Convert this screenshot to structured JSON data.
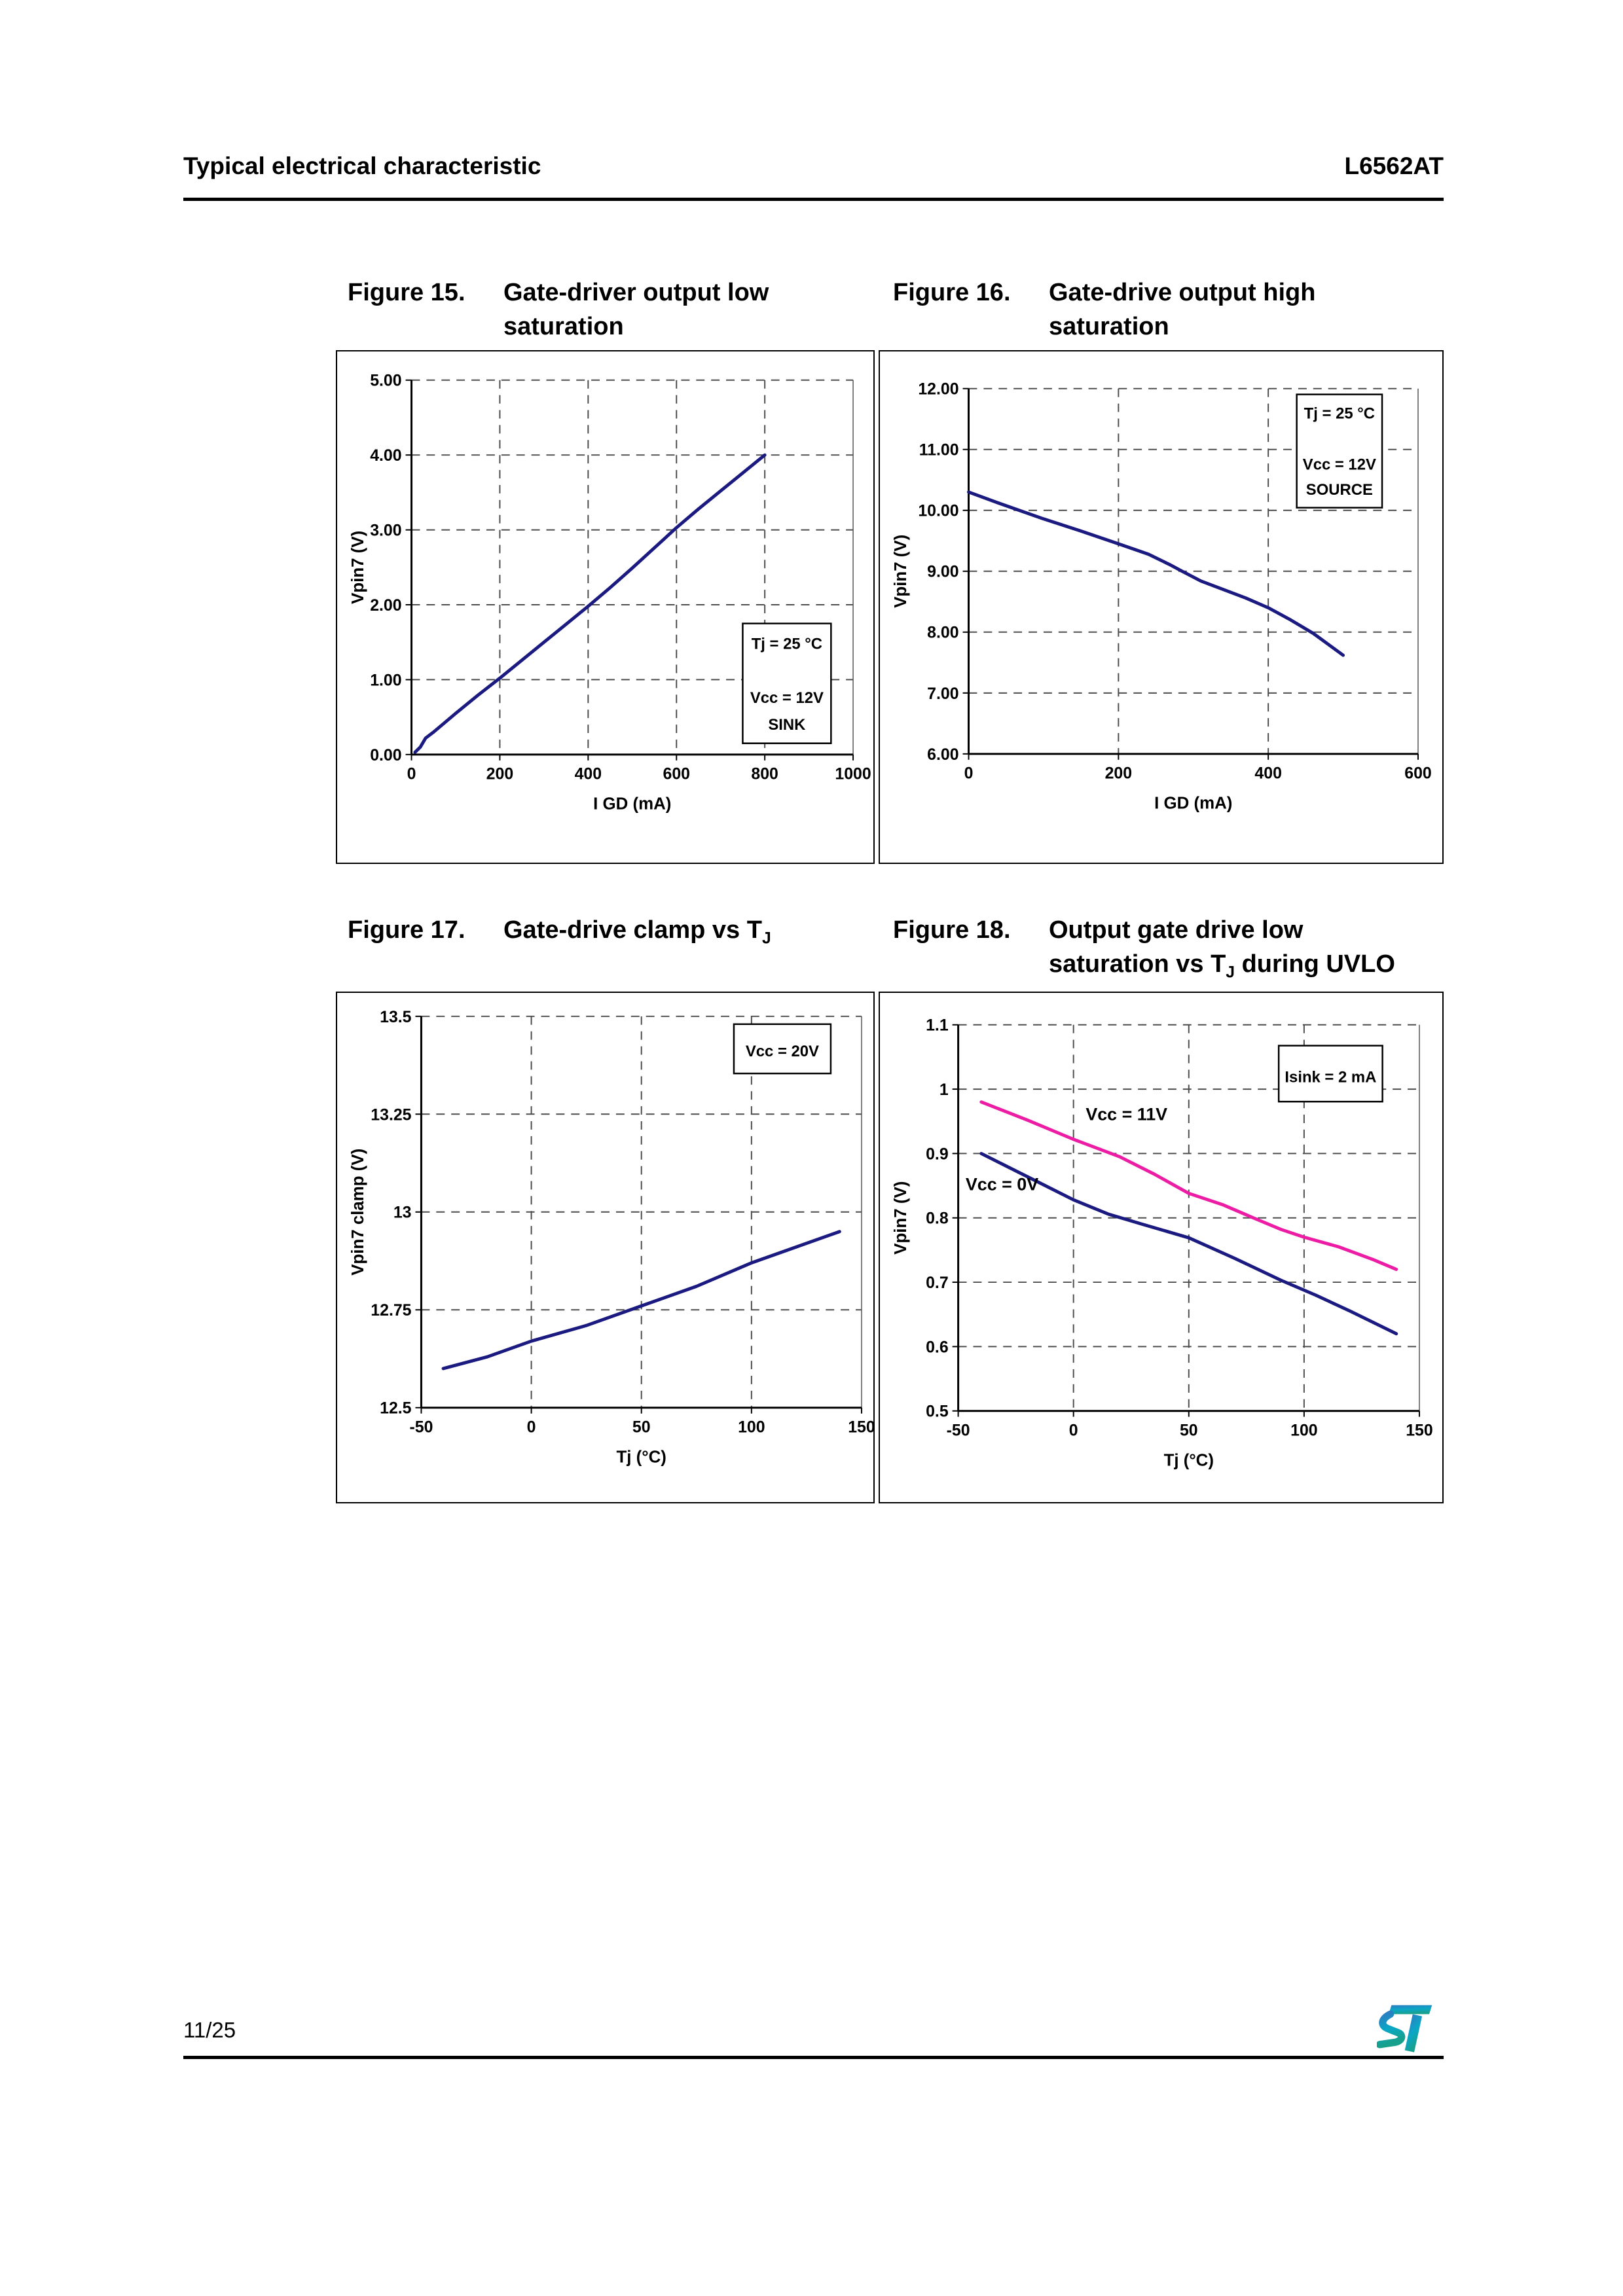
{
  "page": {
    "header_left": "Typical electrical characteristic",
    "header_right": "L6562AT",
    "footer_page": "11/25",
    "logo_name": "st-logo"
  },
  "colors": {
    "navy": "#1a1a80",
    "magenta": "#ec1ca4",
    "grid": "#4d4d4d",
    "axis": "#000000",
    "logo_blue": "#2e7bc1",
    "logo_teal": "#17a08c"
  },
  "figures": [
    {
      "label": "Figure 15.",
      "l1_pre": "Gate-driver output low",
      "l1_sub": "",
      "l1_post": "",
      "l2_pre": "saturation",
      "l2_sub": "",
      "l2_post": ""
    },
    {
      "label": "Figure 16.",
      "l1_pre": "Gate-drive output high",
      "l1_sub": "",
      "l1_post": "",
      "l2_pre": "saturation",
      "l2_sub": "",
      "l2_post": ""
    },
    {
      "label": "Figure 17.",
      "l1_pre": "Gate-drive clamp vs T",
      "l1_sub": "J",
      "l1_post": "",
      "l2_pre": "",
      "l2_sub": "",
      "l2_post": ""
    },
    {
      "label": "Figure 18.",
      "l1_pre": "Output gate drive low",
      "l1_sub": "",
      "l1_post": "",
      "l2_pre": "saturation vs T",
      "l2_sub": "J",
      "l2_post": " during UVLO"
    }
  ],
  "chart_data": [
    {
      "id": "fig15",
      "type": "line",
      "title": "Gate-driver output low saturation",
      "xlabel": "I GD (mA)",
      "ylabel": "Vpin7 (V)",
      "xlim": [
        0,
        1000
      ],
      "ylim": [
        0,
        5
      ],
      "xticks": [
        0,
        200,
        400,
        600,
        800,
        1000
      ],
      "xtick_labels": [
        "0",
        "200",
        "400",
        "600",
        "800",
        "1000"
      ],
      "yticks": [
        0,
        1,
        2,
        3,
        4,
        5
      ],
      "ytick_labels": [
        "0.00",
        "1.00",
        "2.00",
        "3.00",
        "4.00",
        "5.00"
      ],
      "grid": "dashed",
      "annotation": {
        "lines": [
          "Tj = 25 °C",
          "",
          "Vcc = 12V",
          "SINK"
        ],
        "fx": 0.75,
        "fy": 0.65,
        "fw": 0.2,
        "fh": 0.32
      },
      "series": [
        {
          "name": "Vpin7 low saturation, sink",
          "color": "#1a1a80",
          "points": [
            [
              8,
              0.03
            ],
            [
              20,
              0.1
            ],
            [
              32,
              0.22
            ],
            [
              50,
              0.3
            ],
            [
              100,
              0.55
            ],
            [
              150,
              0.79
            ],
            [
              200,
              1.02
            ],
            [
              250,
              1.26
            ],
            [
              300,
              1.5
            ],
            [
              350,
              1.74
            ],
            [
              400,
              1.98
            ],
            [
              450,
              2.23
            ],
            [
              500,
              2.49
            ],
            [
              550,
              2.76
            ],
            [
              600,
              3.03
            ],
            [
              650,
              3.28
            ],
            [
              700,
              3.52
            ],
            [
              750,
              3.76
            ],
            [
              800,
              4.0
            ]
          ]
        }
      ]
    },
    {
      "id": "fig16",
      "type": "line",
      "title": "Gate-drive output high saturation",
      "xlabel": "I GD (mA)",
      "ylabel": "Vpin7 (V)",
      "xlim": [
        0,
        600
      ],
      "ylim": [
        6,
        12
      ],
      "xticks": [
        0,
        200,
        400,
        600
      ],
      "xtick_labels": [
        "0",
        "200",
        "400",
        "600"
      ],
      "yticks": [
        6,
        7,
        8,
        9,
        10,
        11,
        12
      ],
      "ytick_labels": [
        "6.00",
        "7.00",
        "8.00",
        "9.00",
        "10.00",
        "11.00",
        "12.00"
      ],
      "grid": "dashed",
      "annotation": {
        "lines": [
          "Tj = 25 °C",
          "",
          "Vcc = 12V",
          "SOURCE"
        ],
        "fx": 0.73,
        "fy": 0.016,
        "fw": 0.19,
        "fh": 0.31
      },
      "series": [
        {
          "name": "Vpin7 high saturation, source",
          "color": "#1a1a80",
          "points": [
            [
              0,
              10.3
            ],
            [
              40,
              10.12
            ],
            [
              100,
              9.86
            ],
            [
              150,
              9.66
            ],
            [
              200,
              9.45
            ],
            [
              240,
              9.28
            ],
            [
              270,
              9.1
            ],
            [
              285,
              9.0
            ],
            [
              310,
              8.84
            ],
            [
              340,
              8.7
            ],
            [
              370,
              8.56
            ],
            [
              400,
              8.4
            ],
            [
              430,
              8.2
            ],
            [
              460,
              7.98
            ],
            [
              480,
              7.8
            ],
            [
              500,
              7.62
            ]
          ]
        }
      ]
    },
    {
      "id": "fig17",
      "type": "line",
      "title": "Gate-drive clamp vs TJ",
      "xlabel": "Tj (°C)",
      "ylabel": "Vpin7 clamp (V)",
      "xlim": [
        -50,
        150
      ],
      "ylim": [
        12.5,
        13.5
      ],
      "xticks": [
        -50,
        0,
        50,
        100,
        150
      ],
      "xtick_labels": [
        "-50",
        "0",
        "50",
        "100",
        "150"
      ],
      "yticks": [
        12.5,
        12.75,
        13,
        13.25,
        13.5
      ],
      "ytick_labels": [
        "12.5",
        "12.75",
        "13",
        "13.25",
        "13.5"
      ],
      "grid": "dashed",
      "annotation": {
        "lines": [
          "Vcc = 20V"
        ],
        "fx": 0.71,
        "fy": 0.02,
        "fw": 0.22,
        "fh": 0.126
      },
      "series": [
        {
          "name": "Vpin7 clamp",
          "color": "#1a1a80",
          "points": [
            [
              -40,
              12.6
            ],
            [
              -20,
              12.63
            ],
            [
              0,
              12.67
            ],
            [
              25,
              12.71
            ],
            [
              50,
              12.76
            ],
            [
              75,
              12.81
            ],
            [
              100,
              12.87
            ],
            [
              120,
              12.91
            ],
            [
              140,
              12.95
            ]
          ]
        }
      ]
    },
    {
      "id": "fig18",
      "type": "line",
      "title": "Output gate drive low saturation vs TJ during UVLO",
      "xlabel": "Tj (°C)",
      "ylabel": "Vpin7 (V)",
      "xlim": [
        -50,
        150
      ],
      "ylim": [
        0.5,
        1.1
      ],
      "xticks": [
        -50,
        0,
        50,
        100,
        150
      ],
      "xtick_labels": [
        "-50",
        "0",
        "50",
        "100",
        "150"
      ],
      "yticks": [
        0.5,
        0.6,
        0.7,
        0.8,
        0.9,
        1,
        1.1
      ],
      "ytick_labels": [
        "0.5",
        "0.6",
        "0.7",
        "0.8",
        "0.9",
        "1",
        "1.1"
      ],
      "grid": "dashed",
      "annotation": {
        "lines": [
          "Isink = 2 mA"
        ],
        "fx": 0.695,
        "fy": 0.054,
        "fw": 0.225,
        "fh": 0.145
      },
      "inline_labels": [
        {
          "text": "Vcc = 11V",
          "x": 23,
          "y": 0.952
        },
        {
          "text": "Vcc = 0V",
          "x": -31,
          "y": 0.843
        }
      ],
      "series": [
        {
          "name": "Vcc = 11V",
          "color": "#ec1ca4",
          "points": [
            [
              -40,
              0.98
            ],
            [
              -20,
              0.952
            ],
            [
              0,
              0.922
            ],
            [
              20,
              0.895
            ],
            [
              35,
              0.868
            ],
            [
              50,
              0.838
            ],
            [
              65,
              0.82
            ],
            [
              78,
              0.8
            ],
            [
              90,
              0.782
            ],
            [
              100,
              0.77
            ],
            [
              115,
              0.755
            ],
            [
              130,
              0.735
            ],
            [
              140,
              0.72
            ]
          ]
        },
        {
          "name": "Vcc = 0V",
          "color": "#1a1a80",
          "points": [
            [
              -40,
              0.9
            ],
            [
              -30,
              0.882
            ],
            [
              -15,
              0.855
            ],
            [
              0,
              0.828
            ],
            [
              15,
              0.806
            ],
            [
              30,
              0.79
            ],
            [
              50,
              0.769
            ],
            [
              70,
              0.737
            ],
            [
              90,
              0.703
            ],
            [
              105,
              0.68
            ],
            [
              120,
              0.655
            ],
            [
              140,
              0.62
            ]
          ]
        }
      ]
    }
  ]
}
